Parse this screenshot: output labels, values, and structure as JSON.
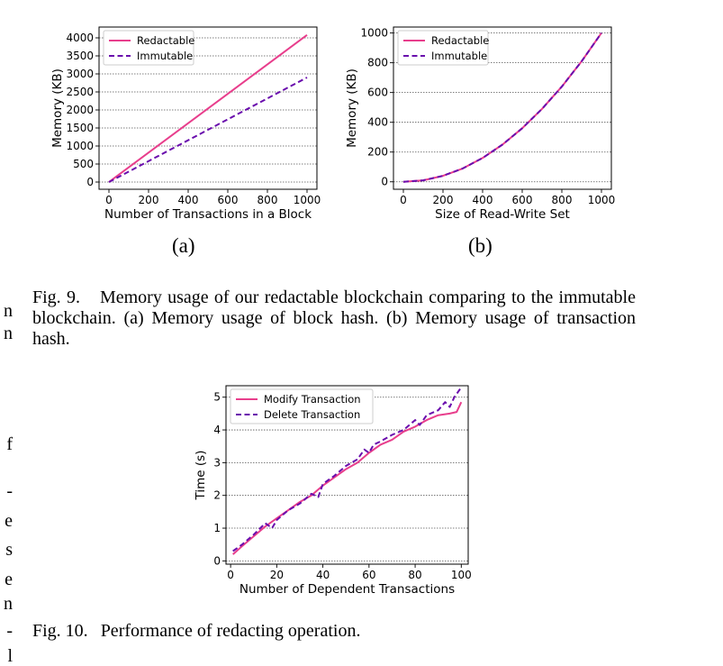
{
  "margin_fragments": [
    "n",
    "n",
    "f",
    "-",
    "e",
    "s",
    "e",
    "n",
    "-",
    "l"
  ],
  "figure9": {
    "label_a": "(a)",
    "label_b": "(b)",
    "caption_num": "Fig. 9.",
    "caption_text": "Memory usage of our redactable blockchain comparing to the immutable blockchain. (a) Memory usage of block hash. (b) Memory usage of transaction hash."
  },
  "figure10": {
    "caption_num": "Fig. 10.",
    "caption_text": "Performance of redacting operation."
  },
  "colors": {
    "pink": "#e83e8c",
    "purple": "#6a0dad"
  },
  "chart_data": [
    {
      "id": "chart-a",
      "type": "line",
      "xlabel": "Number of Transactions in a Block",
      "ylabel": "Memory (KB)",
      "xlim": [
        -50,
        1050
      ],
      "ylim": [
        -200,
        4300
      ],
      "xticks": [
        0,
        200,
        400,
        600,
        800,
        1000
      ],
      "yticks": [
        0,
        500,
        1000,
        1500,
        2000,
        2500,
        3000,
        3500,
        4000
      ],
      "grid": "horizontal-dotted",
      "legend": "top-left",
      "series": [
        {
          "name": "Redactable",
          "style": "solid",
          "color": "#e83e8c",
          "x": [
            0,
            1000
          ],
          "y": [
            0,
            4080
          ]
        },
        {
          "name": "Immutable",
          "style": "dashed",
          "color": "#6a0dad",
          "x": [
            0,
            1000
          ],
          "y": [
            0,
            2900
          ]
        }
      ]
    },
    {
      "id": "chart-b",
      "type": "line",
      "xlabel": "Size of Read-Write Set",
      "ylabel": "Memory (KB)",
      "xlim": [
        -50,
        1050
      ],
      "ylim": [
        -50,
        1040
      ],
      "xticks": [
        0,
        200,
        400,
        600,
        800,
        1000
      ],
      "yticks": [
        0,
        200,
        400,
        600,
        800,
        1000
      ],
      "grid": "horizontal-dotted",
      "legend": "top-left",
      "series": [
        {
          "name": "Redactable",
          "style": "solid",
          "color": "#e83e8c",
          "x": [
            0,
            100,
            200,
            300,
            400,
            500,
            600,
            700,
            800,
            900,
            1000
          ],
          "y": [
            0,
            10,
            40,
            90,
            160,
            250,
            360,
            490,
            640,
            810,
            1000
          ]
        },
        {
          "name": "Immutable",
          "style": "dashed",
          "color": "#6a0dad",
          "x": [
            0,
            100,
            200,
            300,
            400,
            500,
            600,
            700,
            800,
            900,
            1000
          ],
          "y": [
            0,
            10,
            40,
            90,
            160,
            250,
            360,
            490,
            640,
            810,
            1000
          ]
        }
      ]
    },
    {
      "id": "chart-c",
      "type": "line",
      "xlabel": "Number of Dependent Transactions",
      "ylabel": "Time (s)",
      "xlim": [
        -2,
        103
      ],
      "ylim": [
        -0.1,
        5.35
      ],
      "xticks": [
        0,
        20,
        40,
        60,
        80,
        100
      ],
      "yticks": [
        0,
        1,
        2,
        3,
        4,
        5
      ],
      "grid": "horizontal-dotted",
      "legend": "top-left",
      "series": [
        {
          "name": "Modify Transaction",
          "style": "solid",
          "color": "#e83e8c",
          "x": [
            1,
            5,
            10,
            15,
            20,
            25,
            30,
            35,
            40,
            45,
            50,
            55,
            60,
            65,
            70,
            75,
            80,
            85,
            90,
            95,
            98,
            100
          ],
          "y": [
            0.2,
            0.45,
            0.75,
            1.05,
            1.3,
            1.55,
            1.8,
            2.0,
            2.3,
            2.55,
            2.8,
            3.0,
            3.3,
            3.55,
            3.7,
            3.95,
            4.1,
            4.3,
            4.45,
            4.5,
            4.55,
            4.85
          ]
        },
        {
          "name": "Delete Transaction",
          "style": "dashed",
          "color": "#6a0dad",
          "x": [
            1,
            5,
            10,
            15,
            18,
            20,
            25,
            30,
            35,
            38,
            40,
            45,
            50,
            55,
            58,
            60,
            62,
            65,
            70,
            75,
            80,
            82,
            85,
            90,
            93,
            95,
            97,
            100
          ],
          "y": [
            0.3,
            0.5,
            0.8,
            1.15,
            1.0,
            1.25,
            1.55,
            1.75,
            2.05,
            1.95,
            2.35,
            2.6,
            2.9,
            3.1,
            3.4,
            3.3,
            3.55,
            3.65,
            3.85,
            4.0,
            4.3,
            4.15,
            4.45,
            4.6,
            4.85,
            4.7,
            5.0,
            5.3
          ]
        }
      ]
    }
  ]
}
